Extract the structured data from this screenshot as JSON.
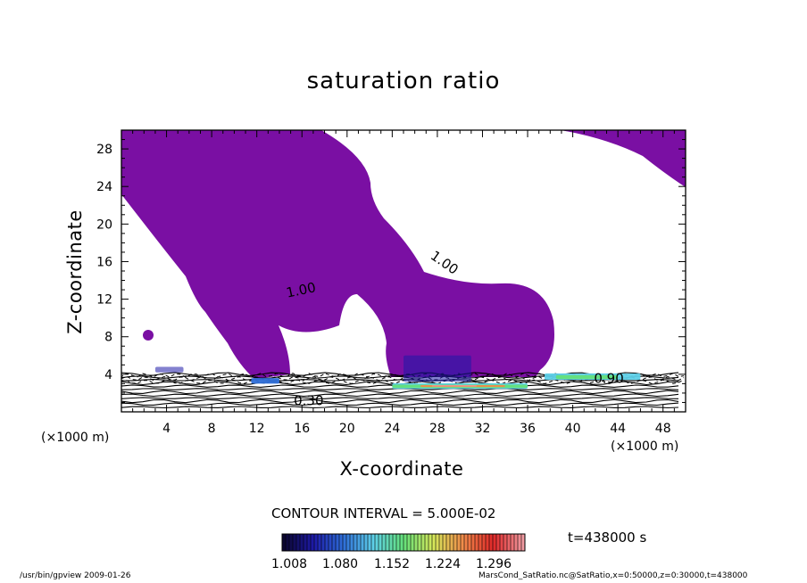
{
  "chart_data": {
    "type": "heatmap",
    "title": "saturation ratio",
    "xlabel": "X-coordinate",
    "ylabel": "Z-coordinate",
    "x_unit_label": "(×1000 m)",
    "xlim": [
      0,
      50
    ],
    "ylim": [
      0,
      30
    ],
    "x_ticks": [
      "4",
      "8",
      "12",
      "16",
      "20",
      "24",
      "28",
      "32",
      "36",
      "40",
      "44",
      "48"
    ],
    "y_ticks": [
      "4",
      "8",
      "12",
      "16",
      "20",
      "24",
      "28"
    ],
    "contour_labels": [
      {
        "text": "1.00",
        "x": 16,
        "z": 12.5
      },
      {
        "text": "1.00",
        "x": 28.4,
        "z": 15.5
      },
      {
        "text": "0.90",
        "x": 43.2,
        "z": 3.1
      },
      {
        "text": "0.30",
        "x": 16.6,
        "z": 0.7
      }
    ],
    "contour_interval_text": "CONTOUR INTERVAL = 5.000E-02",
    "colorbar": {
      "ticks": [
        "1.008",
        "1.080",
        "1.152",
        "1.224",
        "1.296"
      ],
      "min": 1.008,
      "max": 1.296,
      "colors": [
        "#0b0630",
        "#1e1aa8",
        "#2f6fd8",
        "#5ed0e8",
        "#64e07a",
        "#d6e85a",
        "#f08a4a",
        "#e02828",
        "#f09aa0"
      ]
    },
    "time_label": "t=438000  s",
    "fill_color": "#7a0fa3"
  },
  "footer": {
    "left": "/usr/bin/gpview   2009-01-26",
    "right": "MarsCond_SatRatio.nc@SatRatio,x=0:50000,z=0:30000,t=438000"
  }
}
